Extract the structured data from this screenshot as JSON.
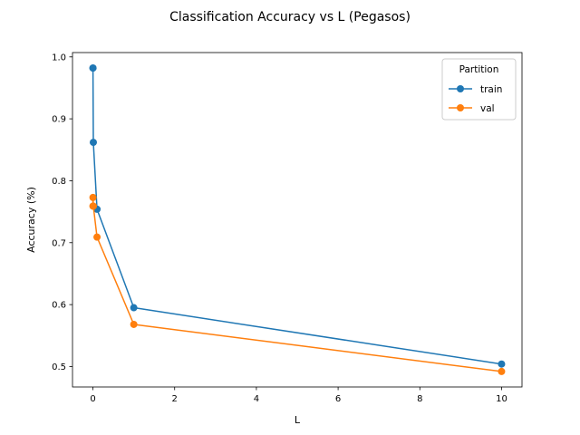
{
  "chart_data": {
    "type": "line",
    "title": "Classification Accuracy vs L (Pegasos)",
    "xlabel": "L",
    "ylabel": "Accuracy (%)",
    "xlim": [
      -0.5,
      10.5
    ],
    "ylim": [
      0.467,
      1.007
    ],
    "x_ticks": [
      0,
      2,
      4,
      6,
      8,
      10
    ],
    "y_ticks": [
      0.5,
      0.6,
      0.7,
      0.8,
      0.9,
      1.0
    ],
    "x_tick_labels": [
      "0",
      "2",
      "4",
      "6",
      "8",
      "10"
    ],
    "y_tick_labels": [
      "0.5",
      "0.6",
      "0.7",
      "0.8",
      "0.9",
      "1.0"
    ],
    "grid": false,
    "legend": {
      "title": "Partition",
      "placement": "top-right"
    },
    "series": [
      {
        "name": "train",
        "color": "#1f77b4",
        "x": [
          0.0001,
          0.001,
          0.01,
          0.1,
          1,
          10
        ],
        "y": [
          0.982,
          0.982,
          0.862,
          0.754,
          0.595,
          0.504
        ]
      },
      {
        "name": "val",
        "color": "#ff7f0e",
        "x": [
          0.0001,
          0.001,
          0.01,
          0.1,
          1,
          10
        ],
        "y": [
          0.759,
          0.773,
          0.759,
          0.709,
          0.568,
          0.492
        ]
      }
    ]
  }
}
